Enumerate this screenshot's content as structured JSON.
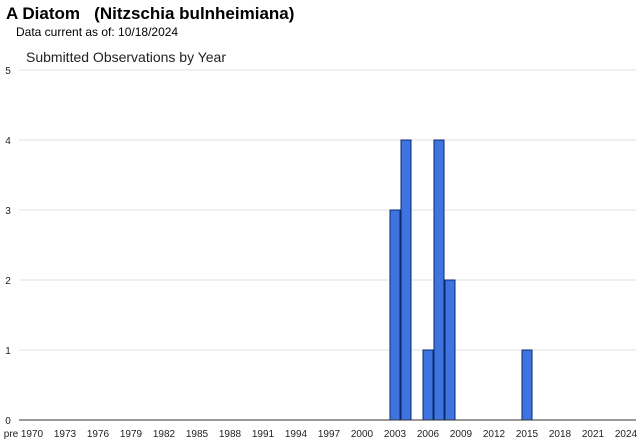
{
  "header": {
    "title": "A Diatom   (Nitzschia bulnheimiana)",
    "subtitle": "Data current as of: 10/18/2024"
  },
  "colors": {
    "bar_fill": "#3f74e0",
    "bar_stroke": "#0a2a70",
    "grid": "#e2e2e2",
    "axis": "#333333"
  },
  "chart_data": {
    "type": "bar",
    "title": "Submitted Observations by Year",
    "xlabel": "",
    "ylabel": "",
    "ylim": [
      0,
      5
    ],
    "yticks": [
      0,
      1,
      2,
      3,
      4,
      5
    ],
    "grid": true,
    "x_tick_labels": [
      "pre",
      "1970",
      "1973",
      "1976",
      "1979",
      "1982",
      "1985",
      "1988",
      "1991",
      "1994",
      "1997",
      "2000",
      "2003",
      "2006",
      "2009",
      "2012",
      "2015",
      "2018",
      "2021",
      "2024"
    ],
    "categories": [
      "2003",
      "2004",
      "2006",
      "2007",
      "2008",
      "2015"
    ],
    "values": [
      3,
      4,
      1,
      4,
      2,
      1
    ]
  }
}
